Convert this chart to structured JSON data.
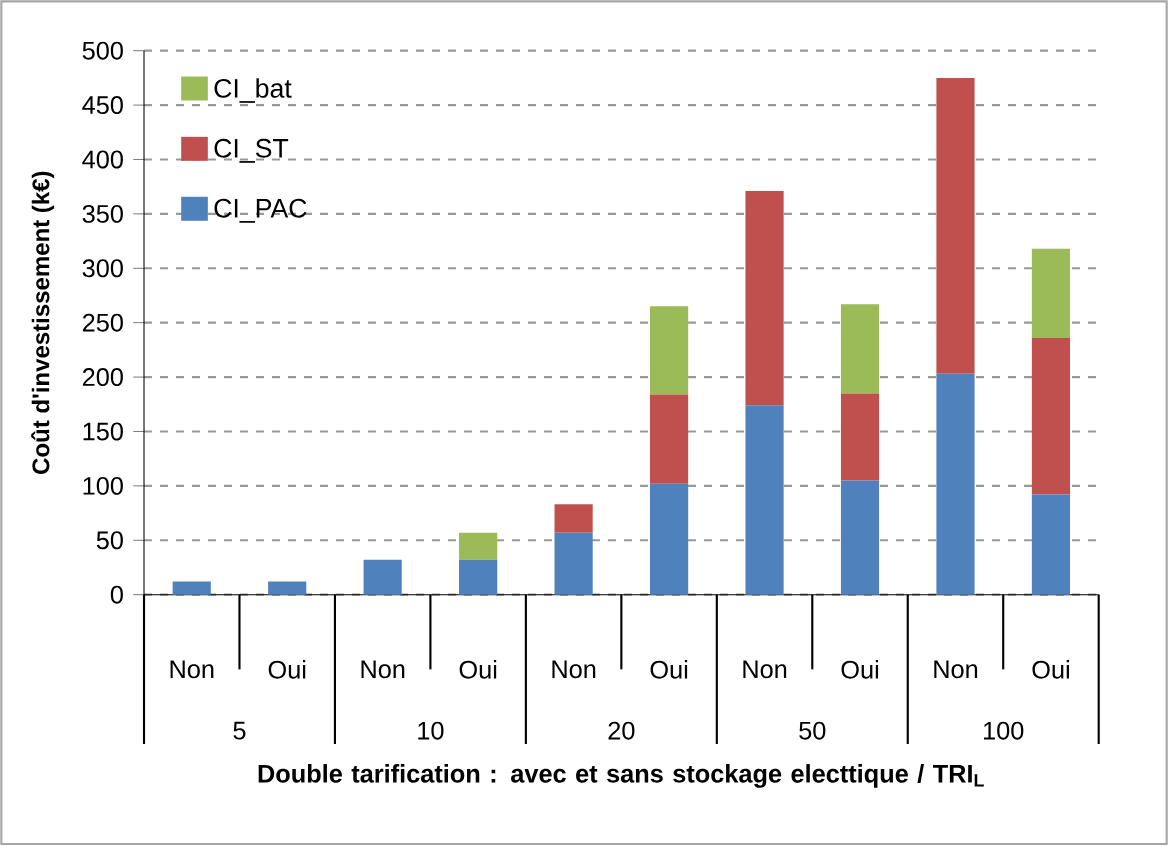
{
  "chart_data": {
    "type": "bar",
    "stacked": true,
    "ylabel": "Coût d'investissement (k€)",
    "xlabel": "Double tarification : avec et sans stockage electtique / TRI$_{L}$",
    "categories": [
      "Non",
      "Oui",
      "Non",
      "Oui",
      "Non",
      "Oui",
      "Non",
      "Oui",
      "Non",
      "Oui"
    ],
    "annotations": [
      "5",
      "10",
      "20",
      "50",
      "100"
    ],
    "series": [
      {
        "name": "CI_PAC",
        "color": "#4f81bd",
        "values": [
          12,
          12,
          32,
          32,
          57,
          102,
          174,
          105,
          203,
          92
        ]
      },
      {
        "name": "CI_ST",
        "color": "#c0504d",
        "values": [
          0,
          0,
          0,
          0,
          26,
          82,
          197,
          80,
          272,
          144
        ]
      },
      {
        "name": "CI_bat",
        "color": "#9bbb59",
        "values": [
          0,
          0,
          0,
          25,
          0,
          81,
          0,
          82,
          0,
          82
        ]
      }
    ],
    "ylim": [
      0,
      500
    ],
    "yticks": [
      0,
      50,
      100,
      150,
      200,
      250,
      300,
      350,
      400,
      450,
      500
    ],
    "grid": "y",
    "legend": "top left"
  }
}
